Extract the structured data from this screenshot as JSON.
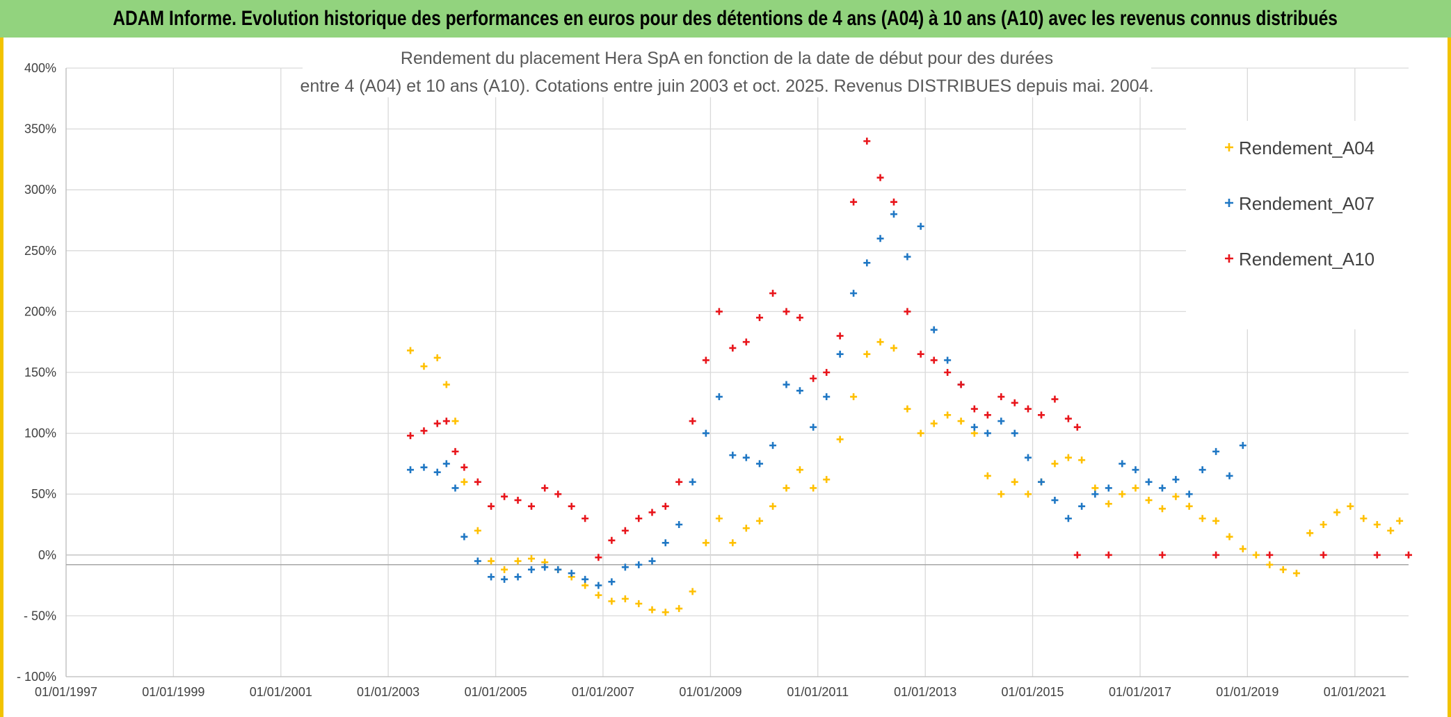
{
  "banner": {
    "title": "ADAM Informe. Evolution historique des performances en euros pour des détentions de 4 ans (A04) à 10 ans (A10) avec les revenus connus distribués",
    "background": "#92d37e",
    "border_color": "#f2c300"
  },
  "chart_data": {
    "type": "scatter",
    "title_lines": [
      "Rendement du placement Hera SpA en fonction de la date de début pour des durées",
      "entre 4 (A04) et 10 ans (A10). Cotations entre juin 2003 et oct. 2025. Revenus DISTRIBUES depuis mai. 2004."
    ],
    "xlabel": "",
    "ylabel": "",
    "x_range": [
      "1997-01-01",
      "2022-01-01"
    ],
    "x_ticks": [
      "01/01/1997",
      "01/01/1999",
      "01/01/2001",
      "01/01/2003",
      "01/01/2005",
      "01/01/2007",
      "01/01/2009",
      "01/01/2011",
      "01/01/2013",
      "01/01/2015",
      "01/01/2017",
      "01/01/2019",
      "01/01/2021"
    ],
    "ylim": [
      -100,
      400
    ],
    "y_ticks": [
      "- 100%",
      "- 50%",
      "0%",
      "50%",
      "100%",
      "150%",
      "200%",
      "250%",
      "300%",
      "350%",
      "400%"
    ],
    "grid": true,
    "legend_position": "top-right",
    "series": [
      {
        "name": "Rendement_A04",
        "color": "#ffc000",
        "marker": "+",
        "points": [
          [
            "2003-06-01",
            168
          ],
          [
            "2003-09-01",
            155
          ],
          [
            "2003-12-01",
            162
          ],
          [
            "2004-02-01",
            140
          ],
          [
            "2004-04-01",
            110
          ],
          [
            "2004-06-01",
            60
          ],
          [
            "2004-09-01",
            20
          ],
          [
            "2004-12-01",
            -5
          ],
          [
            "2005-03-01",
            -12
          ],
          [
            "2005-06-01",
            -5
          ],
          [
            "2005-09-01",
            -3
          ],
          [
            "2005-12-01",
            -6
          ],
          [
            "2006-03-01",
            -12
          ],
          [
            "2006-06-01",
            -18
          ],
          [
            "2006-09-01",
            -25
          ],
          [
            "2006-12-01",
            -33
          ],
          [
            "2007-03-01",
            -38
          ],
          [
            "2007-06-01",
            -36
          ],
          [
            "2007-09-01",
            -40
          ],
          [
            "2007-12-01",
            -45
          ],
          [
            "2008-03-01",
            -47
          ],
          [
            "2008-06-01",
            -44
          ],
          [
            "2008-09-01",
            -30
          ],
          [
            "2008-12-01",
            10
          ],
          [
            "2009-03-01",
            30
          ],
          [
            "2009-06-01",
            10
          ],
          [
            "2009-09-01",
            22
          ],
          [
            "2009-12-01",
            28
          ],
          [
            "2010-03-01",
            40
          ],
          [
            "2010-06-01",
            55
          ],
          [
            "2010-09-01",
            70
          ],
          [
            "2010-12-01",
            55
          ],
          [
            "2011-03-01",
            62
          ],
          [
            "2011-06-01",
            95
          ],
          [
            "2011-09-01",
            130
          ],
          [
            "2011-12-01",
            165
          ],
          [
            "2012-03-01",
            175
          ],
          [
            "2012-06-01",
            170
          ],
          [
            "2012-09-01",
            120
          ],
          [
            "2012-12-01",
            100
          ],
          [
            "2013-03-01",
            108
          ],
          [
            "2013-06-01",
            115
          ],
          [
            "2013-09-01",
            110
          ],
          [
            "2013-12-01",
            100
          ],
          [
            "2014-03-01",
            65
          ],
          [
            "2014-06-01",
            50
          ],
          [
            "2014-09-01",
            60
          ],
          [
            "2014-12-01",
            50
          ],
          [
            "2015-03-01",
            60
          ],
          [
            "2015-06-01",
            75
          ],
          [
            "2015-09-01",
            80
          ],
          [
            "2015-12-01",
            78
          ],
          [
            "2016-03-01",
            55
          ],
          [
            "2016-06-01",
            42
          ],
          [
            "2016-09-01",
            50
          ],
          [
            "2016-12-01",
            55
          ],
          [
            "2017-03-01",
            45
          ],
          [
            "2017-06-01",
            38
          ],
          [
            "2017-09-01",
            48
          ],
          [
            "2017-12-01",
            40
          ],
          [
            "2018-03-01",
            30
          ],
          [
            "2018-06-01",
            28
          ],
          [
            "2018-09-01",
            15
          ],
          [
            "2018-12-01",
            5
          ],
          [
            "2019-03-01",
            0
          ],
          [
            "2019-06-01",
            -8
          ],
          [
            "2019-09-01",
            -12
          ],
          [
            "2019-12-01",
            -15
          ],
          [
            "2020-03-01",
            18
          ],
          [
            "2020-06-01",
            25
          ],
          [
            "2020-09-01",
            35
          ],
          [
            "2020-12-01",
            40
          ],
          [
            "2021-03-01",
            30
          ],
          [
            "2021-06-01",
            25
          ],
          [
            "2021-09-01",
            20
          ],
          [
            "2021-11-01",
            28
          ]
        ]
      },
      {
        "name": "Rendement_A07",
        "color": "#1f77c4",
        "marker": "+",
        "points": [
          [
            "2003-06-01",
            70
          ],
          [
            "2003-09-01",
            72
          ],
          [
            "2003-12-01",
            68
          ],
          [
            "2004-02-01",
            75
          ],
          [
            "2004-04-01",
            55
          ],
          [
            "2004-06-01",
            15
          ],
          [
            "2004-09-01",
            -5
          ],
          [
            "2004-12-01",
            -18
          ],
          [
            "2005-03-01",
            -20
          ],
          [
            "2005-06-01",
            -18
          ],
          [
            "2005-09-01",
            -12
          ],
          [
            "2005-12-01",
            -10
          ],
          [
            "2006-03-01",
            -12
          ],
          [
            "2006-06-01",
            -15
          ],
          [
            "2006-09-01",
            -20
          ],
          [
            "2006-12-01",
            -25
          ],
          [
            "2007-03-01",
            -22
          ],
          [
            "2007-06-01",
            -10
          ],
          [
            "2007-09-01",
            -8
          ],
          [
            "2007-12-01",
            -5
          ],
          [
            "2008-03-01",
            10
          ],
          [
            "2008-06-01",
            25
          ],
          [
            "2008-09-01",
            60
          ],
          [
            "2008-12-01",
            100
          ],
          [
            "2009-03-01",
            130
          ],
          [
            "2009-06-01",
            82
          ],
          [
            "2009-09-01",
            80
          ],
          [
            "2009-12-01",
            75
          ],
          [
            "2010-03-01",
            90
          ],
          [
            "2010-06-01",
            140
          ],
          [
            "2010-09-01",
            135
          ],
          [
            "2010-12-01",
            105
          ],
          [
            "2011-03-01",
            130
          ],
          [
            "2011-06-01",
            165
          ],
          [
            "2011-09-01",
            215
          ],
          [
            "2011-12-01",
            240
          ],
          [
            "2012-03-01",
            260
          ],
          [
            "2012-06-01",
            280
          ],
          [
            "2012-09-01",
            245
          ],
          [
            "2012-12-01",
            270
          ],
          [
            "2013-03-01",
            185
          ],
          [
            "2013-06-01",
            160
          ],
          [
            "2013-09-01",
            140
          ],
          [
            "2013-12-01",
            105
          ],
          [
            "2014-03-01",
            100
          ],
          [
            "2014-06-01",
            110
          ],
          [
            "2014-09-01",
            100
          ],
          [
            "2014-12-01",
            80
          ],
          [
            "2015-03-01",
            60
          ],
          [
            "2015-06-01",
            45
          ],
          [
            "2015-09-01",
            30
          ],
          [
            "2015-12-01",
            40
          ],
          [
            "2016-03-01",
            50
          ],
          [
            "2016-06-01",
            55
          ],
          [
            "2016-09-01",
            75
          ],
          [
            "2016-12-01",
            70
          ],
          [
            "2017-03-01",
            60
          ],
          [
            "2017-06-01",
            55
          ],
          [
            "2017-09-01",
            62
          ],
          [
            "2017-12-01",
            50
          ],
          [
            "2018-03-01",
            70
          ],
          [
            "2018-06-01",
            85
          ],
          [
            "2018-09-01",
            65
          ],
          [
            "2018-12-01",
            90
          ]
        ]
      },
      {
        "name": "Rendement_A10",
        "color": "#e8151b",
        "marker": "+",
        "points": [
          [
            "2003-06-01",
            98
          ],
          [
            "2003-09-01",
            102
          ],
          [
            "2003-12-01",
            108
          ],
          [
            "2004-02-01",
            110
          ],
          [
            "2004-04-01",
            85
          ],
          [
            "2004-06-01",
            72
          ],
          [
            "2004-09-01",
            60
          ],
          [
            "2004-12-01",
            40
          ],
          [
            "2005-03-01",
            48
          ],
          [
            "2005-06-01",
            45
          ],
          [
            "2005-09-01",
            40
          ],
          [
            "2005-12-01",
            55
          ],
          [
            "2006-03-01",
            50
          ],
          [
            "2006-06-01",
            40
          ],
          [
            "2006-09-01",
            30
          ],
          [
            "2006-12-01",
            -2
          ],
          [
            "2007-03-01",
            12
          ],
          [
            "2007-06-01",
            20
          ],
          [
            "2007-09-01",
            30
          ],
          [
            "2007-12-01",
            35
          ],
          [
            "2008-03-01",
            40
          ],
          [
            "2008-06-01",
            60
          ],
          [
            "2008-09-01",
            110
          ],
          [
            "2008-12-01",
            160
          ],
          [
            "2009-03-01",
            200
          ],
          [
            "2009-06-01",
            170
          ],
          [
            "2009-09-01",
            175
          ],
          [
            "2009-12-01",
            195
          ],
          [
            "2010-03-01",
            215
          ],
          [
            "2010-06-01",
            200
          ],
          [
            "2010-09-01",
            195
          ],
          [
            "2010-12-01",
            145
          ],
          [
            "2011-03-01",
            150
          ],
          [
            "2011-06-01",
            180
          ],
          [
            "2011-09-01",
            290
          ],
          [
            "2011-12-01",
            340
          ],
          [
            "2012-03-01",
            310
          ],
          [
            "2012-06-01",
            290
          ],
          [
            "2012-09-01",
            200
          ],
          [
            "2012-12-01",
            165
          ],
          [
            "2013-03-01",
            160
          ],
          [
            "2013-06-01",
            150
          ],
          [
            "2013-09-01",
            140
          ],
          [
            "2013-12-01",
            120
          ],
          [
            "2014-03-01",
            115
          ],
          [
            "2014-06-01",
            130
          ],
          [
            "2014-09-01",
            125
          ],
          [
            "2014-12-01",
            120
          ],
          [
            "2015-03-01",
            115
          ],
          [
            "2015-06-01",
            128
          ],
          [
            "2015-09-01",
            112
          ],
          [
            "2015-11-01",
            105
          ],
          [
            "2015-11-01",
            0
          ],
          [
            "2016-06-01",
            0
          ],
          [
            "2017-06-01",
            0
          ],
          [
            "2018-06-01",
            0
          ],
          [
            "2019-06-01",
            0
          ],
          [
            "2020-06-01",
            0
          ],
          [
            "2021-06-01",
            0
          ],
          [
            "2022-01-01",
            0
          ]
        ]
      }
    ]
  }
}
